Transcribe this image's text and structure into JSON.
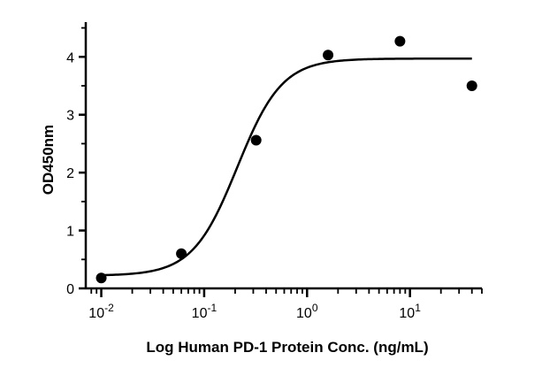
{
  "chart_data": {
    "type": "scatter",
    "title": "",
    "xlabel": "Log Human PD-1 Protein Conc. (ng/mL)",
    "ylabel": "OD450nm",
    "x_scale": "log",
    "xlim": [
      0.0075,
      50
    ],
    "ylim": [
      0,
      4.6
    ],
    "x_ticks": [
      {
        "value": 0.01,
        "base": "10",
        "exp": "-2"
      },
      {
        "value": 0.1,
        "base": "10",
        "exp": "-1"
      },
      {
        "value": 1,
        "base": "10",
        "exp": "0"
      },
      {
        "value": 10,
        "base": "10",
        "exp": "1"
      }
    ],
    "y_ticks": [
      {
        "value": 0,
        "label": "0"
      },
      {
        "value": 1,
        "label": "1"
      },
      {
        "value": 2,
        "label": "2"
      },
      {
        "value": 3,
        "label": "3"
      },
      {
        "value": 4,
        "label": "4"
      }
    ],
    "points": [
      {
        "x": 0.01,
        "y": 0.18
      },
      {
        "x": 0.06,
        "y": 0.6
      },
      {
        "x": 0.32,
        "y": 2.56
      },
      {
        "x": 1.6,
        "y": 4.03
      },
      {
        "x": 8,
        "y": 4.27
      },
      {
        "x": 40,
        "y": 3.5
      }
    ],
    "fit": {
      "model": "4PL",
      "bottom": 0.22,
      "top": 3.97,
      "ec50": 0.21,
      "hill": 2.0,
      "x_range": [
        0.01,
        40
      ]
    },
    "grid": false,
    "legend": "none"
  }
}
